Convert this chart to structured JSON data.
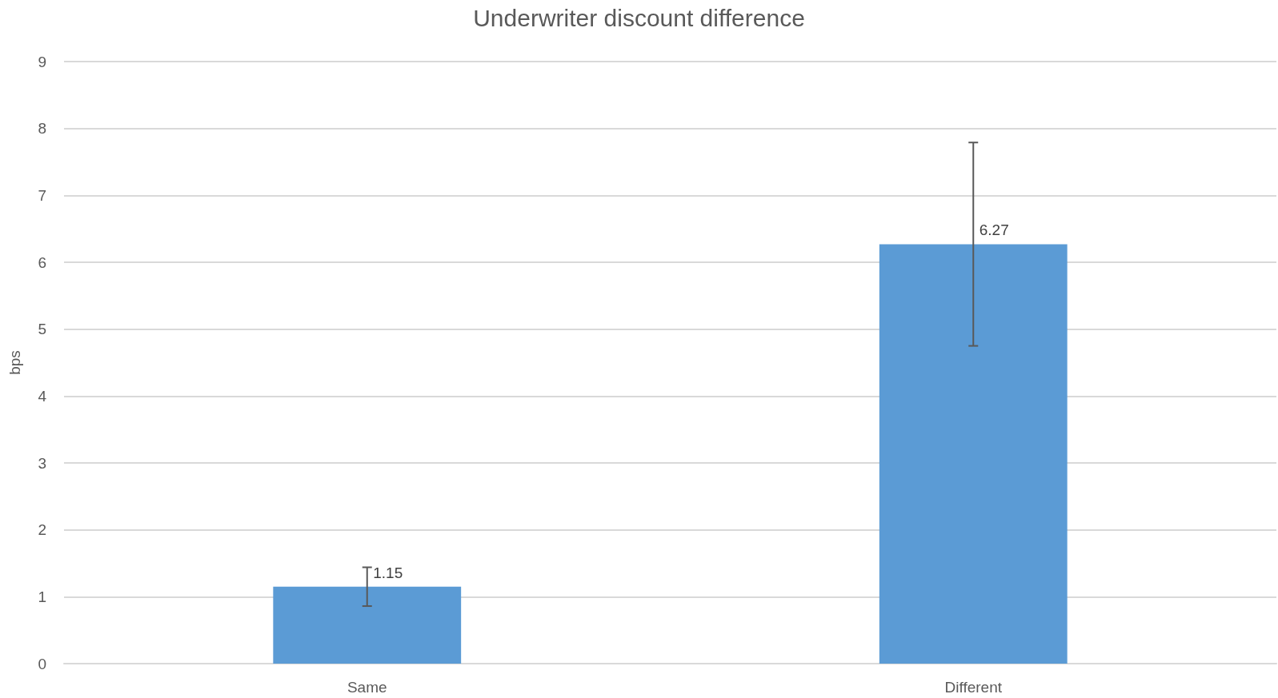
{
  "chart_data": {
    "type": "bar",
    "title": "Underwriter discount difference",
    "ylabel": "bps",
    "categories": [
      "Same",
      "Different"
    ],
    "values": [
      1.15,
      6.27
    ],
    "color": "#5b9bd5",
    "errors": [
      0.29,
      1.52
    ],
    "ylim": [
      0,
      9
    ],
    "yticks": [
      0,
      1,
      2,
      3,
      4,
      5,
      6,
      7,
      8,
      9
    ],
    "grid": "y",
    "data_labels": true
  }
}
